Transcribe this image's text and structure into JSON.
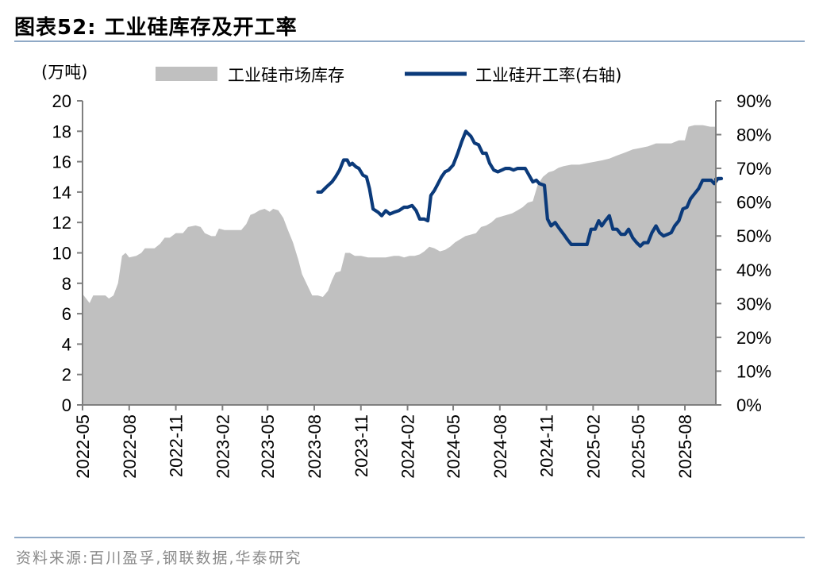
{
  "figure": {
    "title": "图表52:  工业硅库存及开工率",
    "source": "资料来源:百川盈孚,钢联数据,华泰研究"
  },
  "chart_data": {
    "type": "area+line",
    "left_axis_unit": "(万吨)",
    "y_left": {
      "min": 0,
      "max": 20,
      "step": 2,
      "ticks": [
        "0",
        "2",
        "4",
        "6",
        "8",
        "10",
        "12",
        "14",
        "16",
        "18",
        "20"
      ]
    },
    "y_right": {
      "min": 0,
      "max": 90,
      "step": 10,
      "ticks": [
        "0%",
        "10%",
        "20%",
        "30%",
        "40%",
        "50%",
        "60%",
        "70%",
        "80%",
        "90%"
      ]
    },
    "x_ticks": [
      "2022-05",
      "2022-08",
      "2022-11",
      "2023-02",
      "2023-05",
      "2023-08",
      "2023-11",
      "2024-02",
      "2024-05",
      "2024-08",
      "2024-11",
      "2025-02",
      "2025-05",
      "2025-08"
    ],
    "x_range": [
      "2022-05",
      "2025-10"
    ],
    "legend": [
      "工业硅市场库存",
      "工业硅开工率(右轴)"
    ],
    "colors": {
      "area": "#c0c0c0",
      "line": "#0b3a7a",
      "axis": "#7f7f7f"
    },
    "series": [
      {
        "name": "工业硅市场库存",
        "axis": "left",
        "kind": "area",
        "points": [
          [
            "2022-05",
            7.3
          ],
          [
            "2022-05-08",
            7.0
          ],
          [
            "2022-05-15",
            6.7
          ],
          [
            "2022-05-22",
            7.2
          ],
          [
            "2022-06-01",
            7.2
          ],
          [
            "2022-06-15",
            7.2
          ],
          [
            "2022-06-22",
            7.0
          ],
          [
            "2022-07-01",
            7.2
          ],
          [
            "2022-07-10",
            8.0
          ],
          [
            "2022-07-18",
            9.8
          ],
          [
            "2022-07-25",
            10.0
          ],
          [
            "2022-08-01",
            9.7
          ],
          [
            "2022-08-15",
            9.8
          ],
          [
            "2022-08-25",
            10.0
          ],
          [
            "2022-09-01",
            10.3
          ],
          [
            "2022-09-20",
            10.3
          ],
          [
            "2022-10-01",
            10.6
          ],
          [
            "2022-10-10",
            11.0
          ],
          [
            "2022-10-20",
            11.0
          ],
          [
            "2022-11-01",
            11.3
          ],
          [
            "2022-11-15",
            11.3
          ],
          [
            "2022-11-25",
            11.7
          ],
          [
            "2022-12-10",
            11.8
          ],
          [
            "2022-12-20",
            11.7
          ],
          [
            "2022-12-28",
            11.3
          ],
          [
            "2023-01-10",
            11.1
          ],
          [
            "2023-01-18",
            11.1
          ],
          [
            "2023-01-25",
            11.6
          ],
          [
            "2023-02-05",
            11.5
          ],
          [
            "2023-02-15",
            11.5
          ],
          [
            "2023-03-01",
            11.5
          ],
          [
            "2023-03-10",
            11.5
          ],
          [
            "2023-03-20",
            11.9
          ],
          [
            "2023-03-28",
            12.5
          ],
          [
            "2023-04-05",
            12.6
          ],
          [
            "2023-04-15",
            12.8
          ],
          [
            "2023-04-25",
            12.9
          ],
          [
            "2023-05-05",
            12.7
          ],
          [
            "2023-05-12",
            12.9
          ],
          [
            "2023-05-22",
            12.8
          ],
          [
            "2023-06-01",
            12.3
          ],
          [
            "2023-06-10",
            11.5
          ],
          [
            "2023-06-20",
            10.7
          ],
          [
            "2023-07-01",
            9.5
          ],
          [
            "2023-07-08",
            8.6
          ],
          [
            "2023-07-18",
            7.9
          ],
          [
            "2023-07-28",
            7.2
          ],
          [
            "2023-08-08",
            7.2
          ],
          [
            "2023-08-18",
            7.1
          ],
          [
            "2023-08-28",
            7.5
          ],
          [
            "2023-09-05",
            8.2
          ],
          [
            "2023-09-12",
            8.7
          ],
          [
            "2023-09-22",
            8.8
          ],
          [
            "2023-10-01",
            10.0
          ],
          [
            "2023-10-10",
            10.0
          ],
          [
            "2023-10-20",
            9.8
          ],
          [
            "2023-11-01",
            9.8
          ],
          [
            "2023-11-15",
            9.7
          ],
          [
            "2023-12-01",
            9.7
          ],
          [
            "2023-12-20",
            9.7
          ],
          [
            "2024-01-05",
            9.8
          ],
          [
            "2024-01-15",
            9.8
          ],
          [
            "2024-01-25",
            9.7
          ],
          [
            "2024-02-05",
            9.8
          ],
          [
            "2024-02-15",
            9.8
          ],
          [
            "2024-02-25",
            9.9
          ],
          [
            "2024-03-05",
            10.1
          ],
          [
            "2024-03-15",
            10.4
          ],
          [
            "2024-03-25",
            10.3
          ],
          [
            "2024-04-05",
            10.1
          ],
          [
            "2024-04-15",
            10.2
          ],
          [
            "2024-04-25",
            10.4
          ],
          [
            "2024-05-05",
            10.7
          ],
          [
            "2024-05-15",
            10.9
          ],
          [
            "2024-05-25",
            11.1
          ],
          [
            "2024-06-05",
            11.2
          ],
          [
            "2024-06-15",
            11.3
          ],
          [
            "2024-06-25",
            11.7
          ],
          [
            "2024-07-05",
            11.8
          ],
          [
            "2024-07-15",
            12.0
          ],
          [
            "2024-07-25",
            12.3
          ],
          [
            "2024-08-05",
            12.4
          ],
          [
            "2024-08-15",
            12.5
          ],
          [
            "2024-08-25",
            12.6
          ],
          [
            "2024-09-05",
            12.8
          ],
          [
            "2024-09-15",
            13.0
          ],
          [
            "2024-09-25",
            13.3
          ],
          [
            "2024-10-05",
            13.4
          ],
          [
            "2024-10-15",
            14.5
          ],
          [
            "2024-10-25",
            15.0
          ],
          [
            "2024-11-05",
            15.3
          ],
          [
            "2024-11-15",
            15.4
          ],
          [
            "2024-11-25",
            15.6
          ],
          [
            "2024-12-05",
            15.7
          ],
          [
            "2024-12-20",
            15.8
          ],
          [
            "2025-01-05",
            15.8
          ],
          [
            "2025-01-20",
            15.9
          ],
          [
            "2025-02-05",
            16.0
          ],
          [
            "2025-02-20",
            16.1
          ],
          [
            "2025-03-05",
            16.2
          ],
          [
            "2025-03-20",
            16.4
          ],
          [
            "2025-04-05",
            16.6
          ],
          [
            "2025-04-20",
            16.8
          ],
          [
            "2025-05-05",
            16.9
          ],
          [
            "2025-05-20",
            17.0
          ],
          [
            "2025-06-05",
            17.2
          ],
          [
            "2025-06-20",
            17.2
          ],
          [
            "2025-07-05",
            17.2
          ],
          [
            "2025-07-20",
            17.4
          ],
          [
            "2025-08-01",
            17.4
          ],
          [
            "2025-08-08",
            18.3
          ],
          [
            "2025-08-20",
            18.4
          ],
          [
            "2025-09-05",
            18.4
          ],
          [
            "2025-09-20",
            18.3
          ],
          [
            "2025-10",
            18.3
          ]
        ]
      },
      {
        "name": "工业硅开工率(右轴)",
        "axis": "right",
        "kind": "line",
        "points": [
          [
            "2023-08-08",
            63.0
          ],
          [
            "2023-08-15",
            63.0
          ],
          [
            "2023-08-25",
            64.5
          ],
          [
            "2023-09-05",
            66.0
          ],
          [
            "2023-09-12",
            67.5
          ],
          [
            "2023-09-20",
            69.5
          ],
          [
            "2023-09-28",
            72.5
          ],
          [
            "2023-10-05",
            72.5
          ],
          [
            "2023-10-10",
            71.0
          ],
          [
            "2023-10-15",
            71.5
          ],
          [
            "2023-10-22",
            70.5
          ],
          [
            "2023-10-28",
            70.0
          ],
          [
            "2023-11-05",
            68.0
          ],
          [
            "2023-11-12",
            67.5
          ],
          [
            "2023-11-18",
            64.0
          ],
          [
            "2023-11-25",
            58.0
          ],
          [
            "2023-12-05",
            57.0
          ],
          [
            "2023-12-12",
            56.0
          ],
          [
            "2023-12-20",
            57.5
          ],
          [
            "2023-12-28",
            56.5
          ],
          [
            "2024-01-05",
            57.0
          ],
          [
            "2024-01-15",
            57.5
          ],
          [
            "2024-01-25",
            58.5
          ],
          [
            "2024-02-01",
            58.5
          ],
          [
            "2024-02-10",
            59.0
          ],
          [
            "2024-02-18",
            57.5
          ],
          [
            "2024-02-25",
            55.0
          ],
          [
            "2024-03-05",
            55.0
          ],
          [
            "2024-03-12",
            54.5
          ],
          [
            "2024-03-18",
            62.0
          ],
          [
            "2024-03-25",
            63.5
          ],
          [
            "2024-04-01",
            65.5
          ],
          [
            "2024-04-08",
            67.5
          ],
          [
            "2024-04-15",
            69.0
          ],
          [
            "2024-04-22",
            69.5
          ],
          [
            "2024-05-01",
            71.0
          ],
          [
            "2024-05-10",
            74.5
          ],
          [
            "2024-05-18",
            78.0
          ],
          [
            "2024-05-26",
            81.0
          ],
          [
            "2024-06-05",
            79.5
          ],
          [
            "2024-06-12",
            77.5
          ],
          [
            "2024-06-20",
            77.0
          ],
          [
            "2024-06-28",
            74.5
          ],
          [
            "2024-07-05",
            74.5
          ],
          [
            "2024-07-12",
            71.5
          ],
          [
            "2024-07-20",
            69.5
          ],
          [
            "2024-07-28",
            69.0
          ],
          [
            "2024-08-05",
            69.5
          ],
          [
            "2024-08-12",
            70.0
          ],
          [
            "2024-08-20",
            70.0
          ],
          [
            "2024-08-28",
            69.5
          ],
          [
            "2024-09-05",
            70.0
          ],
          [
            "2024-09-20",
            70.0
          ],
          [
            "2024-10-05",
            66.0
          ],
          [
            "2024-10-12",
            66.5
          ],
          [
            "2024-10-18",
            65.5
          ],
          [
            "2024-10-28",
            65.0
          ],
          [
            "2024-11-03",
            55.0
          ],
          [
            "2024-11-10",
            53.0
          ],
          [
            "2024-11-18",
            54.0
          ],
          [
            "2024-11-25",
            52.5
          ],
          [
            "2024-12-05",
            50.5
          ],
          [
            "2024-12-12",
            49.0
          ],
          [
            "2024-12-20",
            47.5
          ],
          [
            "2025-01-05",
            47.5
          ],
          [
            "2025-01-20",
            47.5
          ],
          [
            "2025-01-28",
            52.0
          ],
          [
            "2025-02-05",
            52.0
          ],
          [
            "2025-02-12",
            54.5
          ],
          [
            "2025-02-18",
            53.0
          ],
          [
            "2025-02-25",
            54.5
          ],
          [
            "2025-03-05",
            56.0
          ],
          [
            "2025-03-12",
            52.0
          ],
          [
            "2025-03-20",
            52.0
          ],
          [
            "2025-03-28",
            50.5
          ],
          [
            "2025-04-05",
            50.5
          ],
          [
            "2025-04-12",
            52.0
          ],
          [
            "2025-04-20",
            49.5
          ],
          [
            "2025-04-28",
            48.0
          ],
          [
            "2025-05-05",
            47.0
          ],
          [
            "2025-05-12",
            48.0
          ],
          [
            "2025-05-20",
            48.0
          ],
          [
            "2025-05-28",
            51.0
          ],
          [
            "2025-06-05",
            53.0
          ],
          [
            "2025-06-12",
            51.0
          ],
          [
            "2025-06-20",
            50.0
          ],
          [
            "2025-06-28",
            50.5
          ],
          [
            "2025-07-05",
            51.0
          ],
          [
            "2025-07-12",
            53.0
          ],
          [
            "2025-07-20",
            54.5
          ],
          [
            "2025-07-28",
            58.0
          ],
          [
            "2025-08-05",
            58.5
          ],
          [
            "2025-08-12",
            61.0
          ],
          [
            "2025-08-20",
            62.5
          ],
          [
            "2025-08-28",
            64.0
          ],
          [
            "2025-09-05",
            66.5
          ],
          [
            "2025-09-15",
            66.5
          ],
          [
            "2025-09-22",
            66.5
          ],
          [
            "2025-09-28",
            65.5
          ],
          [
            "2025-10-05",
            67.0
          ],
          [
            "2025-10-12",
            67.0
          ],
          [
            "2025-10",
            66.8
          ]
        ]
      }
    ]
  }
}
